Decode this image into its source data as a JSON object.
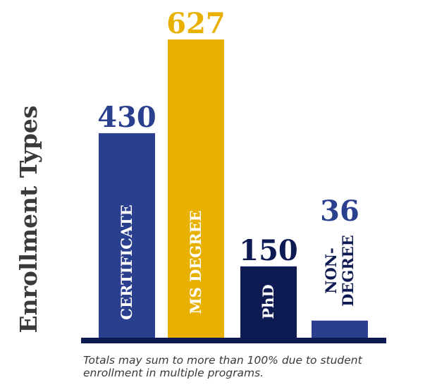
{
  "chart_data": {
    "type": "bar",
    "ylabel": "Enrollment Types",
    "categories": [
      "CERTIFICATE",
      "MS DEGREE",
      "PhD",
      "NON-DEGREE"
    ],
    "category_lines": [
      [
        "CERTIFICATE"
      ],
      [
        "MS DEGREE"
      ],
      [
        "PhD"
      ],
      [
        "NON-",
        "DEGREE"
      ]
    ],
    "values": [
      430,
      627,
      150,
      36
    ],
    "value_labels": [
      "430",
      "627",
      "150",
      "36"
    ],
    "bar_colors": [
      "#2b3f8f",
      "#e8b000",
      "#0e1a52",
      "#2b3f8f"
    ],
    "value_label_colors": [
      "#2b3f8f",
      "#e8b000",
      "#0e1a52",
      "#2b3f8f"
    ],
    "bar_label_colors": [
      "#ffffff",
      "#ffffff",
      "#ffffff",
      "#0e1a52"
    ],
    "baseline_color": "#0e1a52",
    "ylim": [
      0,
      627
    ]
  },
  "footnote": "Totals may sum to more than 100% due to student enrollment in multiple programs."
}
